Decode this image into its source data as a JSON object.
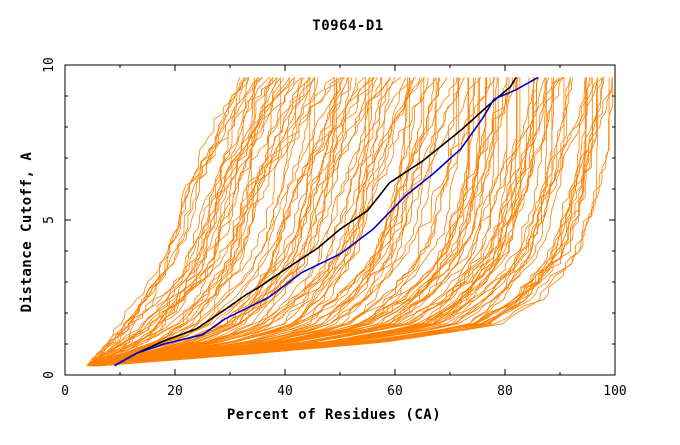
{
  "colors": {
    "background": "#ffffff",
    "axis": "#000000",
    "bundle": "#ff8000",
    "highlight_black": "#000000",
    "highlight_blue": "#0000cc"
  },
  "chart_data": {
    "type": "line",
    "title": "T0964-D1",
    "xlabel": "Percent of Residues (CA)",
    "ylabel": "Distance Cutoff, A",
    "xlim": [
      0,
      100
    ],
    "ylim": [
      0,
      10
    ],
    "x_ticks": [
      0,
      20,
      40,
      60,
      80,
      100
    ],
    "y_ticks": [
      0,
      5,
      10
    ],
    "x_tick_labels": [
      "0",
      "20",
      "40",
      "60",
      "80",
      "100"
    ],
    "y_tick_labels": [
      "0",
      "5",
      "10"
    ],
    "grid": false,
    "legend": "none",
    "series": [
      {
        "color": "#000000",
        "x": [
          9,
          13,
          18,
          24,
          29,
          33,
          35,
          40,
          46,
          50,
          55,
          59,
          65,
          72,
          77,
          81,
          82
        ],
        "y": [
          0.3,
          0.7,
          1.1,
          1.5,
          2.1,
          2.6,
          2.8,
          3.4,
          4.1,
          4.7,
          5.3,
          6.2,
          6.9,
          7.9,
          8.7,
          9.3,
          9.6
        ]
      },
      {
        "color": "#0000cc",
        "x": [
          9,
          13,
          18,
          25,
          29,
          37,
          43,
          50,
          56,
          62,
          67,
          72,
          76,
          78,
          82,
          86
        ],
        "y": [
          0.3,
          0.7,
          1.0,
          1.3,
          1.8,
          2.5,
          3.3,
          3.9,
          4.7,
          5.8,
          6.5,
          7.3,
          8.3,
          8.9,
          9.2,
          9.6
        ]
      }
    ],
    "bundle": {
      "color": "#ff8000",
      "note": "Many additional model curves, roughly spanning the region between the leftmost and rightmost curves below",
      "left_envelope": {
        "x": [
          4,
          10,
          17,
          20,
          22,
          26,
          28,
          30,
          31
        ],
        "y": [
          0.3,
          1.8,
          3.3,
          4.6,
          5.9,
          7.6,
          8.6,
          9.3,
          9.6
        ]
      },
      "right_envelope": {
        "x": [
          6,
          35,
          60,
          79,
          86,
          93,
          97,
          99,
          100
        ],
        "y": [
          0.3,
          0.7,
          1.1,
          1.6,
          2.4,
          3.9,
          6.2,
          7.9,
          9.6
        ]
      }
    }
  }
}
